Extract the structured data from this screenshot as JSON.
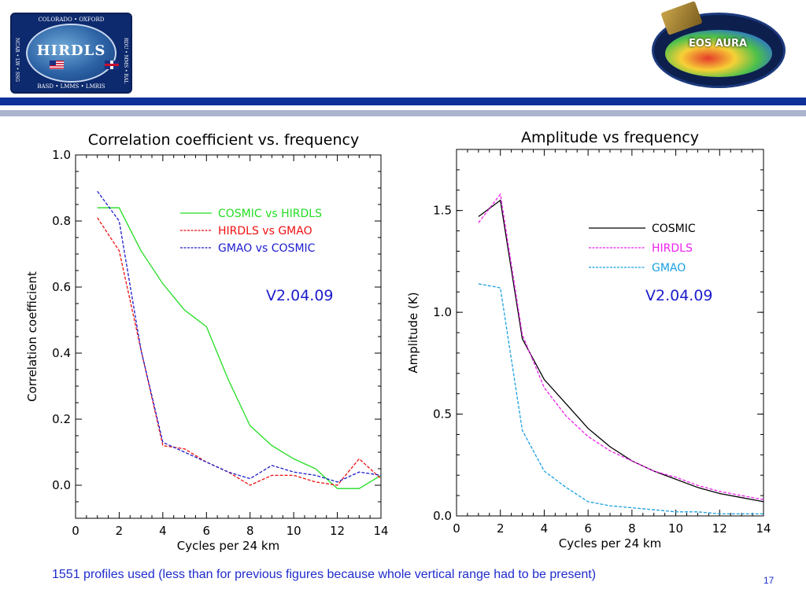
{
  "header": {
    "left_logo": {
      "title": "HIRDLS",
      "top_text": "COLORADO • OXFORD",
      "bottom_text": "BASD • LMMS • LMRIS",
      "left_side_text": "NCAR • LW • SSG",
      "right_side_text": "RDU • MMS • RAL"
    },
    "right_logo": {
      "title": "EOS AURA"
    },
    "colors": {
      "dark_bar": "#10319a",
      "light_bar": "#aab4cc"
    }
  },
  "chart_data": [
    {
      "type": "line",
      "title": "Correlation coefficient vs. frequency",
      "xlabel": "Cycles per 24 km",
      "ylabel": "Correlation coefficient",
      "xlim": [
        0,
        14
      ],
      "ylim": [
        -0.1,
        1.0
      ],
      "xticks": [
        0,
        2,
        4,
        6,
        8,
        10,
        12,
        14
      ],
      "yticks": [
        0.0,
        0.2,
        0.4,
        0.6,
        0.8,
        1.0
      ],
      "xtick_labels": [
        "0",
        "2",
        "4",
        "6",
        "8",
        "10",
        "12",
        "14"
      ],
      "ytick_labels": [
        "0.0",
        "0.2",
        "0.4",
        "0.6",
        "0.8",
        "1.0"
      ],
      "annotation": "V2.04.09",
      "legend_placement": "top-right",
      "series": [
        {
          "name": "COSMIC vs HIRDLS",
          "color": "#22dd22",
          "dash": "solid",
          "x": [
            1,
            2,
            3,
            4,
            5,
            6,
            7,
            8,
            9,
            10,
            11,
            12,
            13,
            14
          ],
          "values": [
            0.84,
            0.84,
            0.71,
            0.61,
            0.53,
            0.48,
            0.32,
            0.18,
            0.12,
            0.08,
            0.05,
            -0.01,
            -0.01,
            0.03
          ]
        },
        {
          "name": "HIRDLS vs GMAO",
          "color": "#ee1111",
          "dash": "dashed",
          "x": [
            1,
            2,
            3,
            4,
            5,
            6,
            7,
            8,
            9,
            10,
            11,
            12,
            13,
            14
          ],
          "values": [
            0.81,
            0.71,
            0.41,
            0.12,
            0.11,
            0.07,
            0.04,
            0.0,
            0.03,
            0.03,
            0.01,
            0.0,
            0.08,
            0.02
          ]
        },
        {
          "name": "GMAO vs COSMIC",
          "color": "#1c1ccc",
          "dash": "dashed",
          "x": [
            1,
            2,
            3,
            4,
            5,
            6,
            7,
            8,
            9,
            10,
            11,
            12,
            13,
            14
          ],
          "values": [
            0.89,
            0.8,
            0.41,
            0.13,
            0.1,
            0.07,
            0.04,
            0.02,
            0.06,
            0.04,
            0.03,
            0.01,
            0.04,
            0.03
          ]
        }
      ]
    },
    {
      "type": "line",
      "title": "Amplitude vs frequency",
      "xlabel": "Cycles per 24 km",
      "ylabel": "Amplitude (K)",
      "xlim": [
        0,
        14
      ],
      "ylim": [
        0.0,
        1.8
      ],
      "xticks": [
        0,
        2,
        4,
        6,
        8,
        10,
        12,
        14
      ],
      "yticks": [
        0.0,
        0.5,
        1.0,
        1.5
      ],
      "xtick_labels": [
        "0",
        "2",
        "4",
        "6",
        "8",
        "10",
        "12",
        "14"
      ],
      "ytick_labels": [
        "0.0",
        "0.5",
        "1.0",
        "1.5"
      ],
      "annotation": "V2.04.09",
      "legend_placement": "top-right",
      "series": [
        {
          "name": "COSMIC",
          "color": "#000000",
          "dash": "solid",
          "x": [
            1,
            2,
            3,
            4,
            5,
            6,
            7,
            8,
            9,
            10,
            11,
            12,
            13,
            14
          ],
          "values": [
            1.47,
            1.55,
            0.87,
            0.67,
            0.55,
            0.43,
            0.34,
            0.27,
            0.22,
            0.18,
            0.14,
            0.11,
            0.09,
            0.07
          ]
        },
        {
          "name": "HIRDLS",
          "color": "#ee22ee",
          "dash": "dashed",
          "x": [
            1,
            2,
            3,
            4,
            5,
            6,
            7,
            8,
            9,
            10,
            11,
            12,
            13,
            14
          ],
          "values": [
            1.44,
            1.58,
            0.89,
            0.63,
            0.49,
            0.39,
            0.32,
            0.27,
            0.22,
            0.19,
            0.15,
            0.12,
            0.1,
            0.08
          ]
        },
        {
          "name": "GMAO",
          "color": "#1aa0e0",
          "dash": "dashed",
          "x": [
            1,
            2,
            3,
            4,
            5,
            6,
            7,
            8,
            9,
            10,
            11,
            12,
            13,
            14
          ],
          "values": [
            1.14,
            1.12,
            0.42,
            0.22,
            0.14,
            0.07,
            0.05,
            0.04,
            0.03,
            0.02,
            0.02,
            0.01,
            0.01,
            0.01
          ]
        }
      ]
    }
  ],
  "footer": {
    "caption": "1551 profiles used (less than for previous figures because whole vertical range had to be present)",
    "page_number": "17",
    "caption_color": "#1f2ccc",
    "annotation_color": "#1c1ccc"
  }
}
